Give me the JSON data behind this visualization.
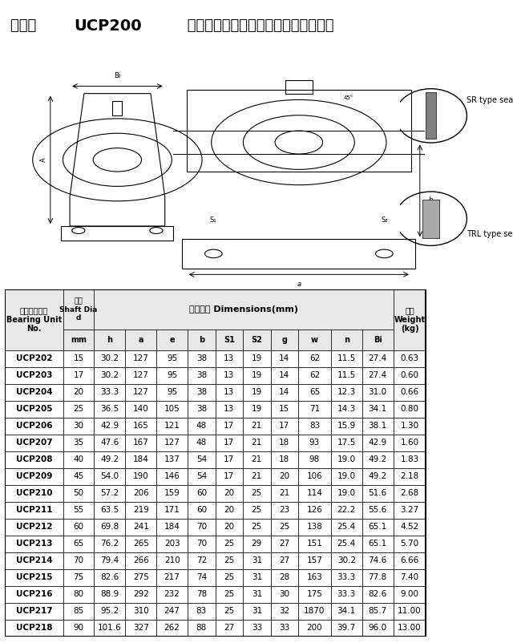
{
  "title_parts": [
    "立式座 ",
    "UCP200",
    " 系列轴承规格、性能、型号对照参数表"
  ],
  "title_bold": [
    false,
    true,
    false
  ],
  "header_row1": [
    "带座轴承型号\nBearing Unit\nNo.",
    "轴径\nShaft Dia\n\nd",
    "外型尺寸 Dimensions(mm)",
    "重量\nWeight\n(kg)"
  ],
  "header_row2": [
    "",
    "mm",
    "h",
    "a",
    "e",
    "b",
    "S1",
    "S2",
    "g",
    "w",
    "n",
    "Bi",
    ""
  ],
  "col_headers": [
    "h",
    "a",
    "e",
    "b",
    "S1",
    "S2",
    "g",
    "w",
    "n",
    "Bi"
  ],
  "rows": [
    [
      "UCP202",
      "15",
      "30.2",
      "127",
      "95",
      "38",
      "13",
      "19",
      "14",
      "62",
      "11.5",
      "27.4",
      "0.63"
    ],
    [
      "UCP203",
      "17",
      "30.2",
      "127",
      "95",
      "38",
      "13",
      "19",
      "14",
      "62",
      "11.5",
      "27.4",
      "0.60"
    ],
    [
      "UCP204",
      "20",
      "33.3",
      "127",
      "95",
      "38",
      "13",
      "19",
      "14",
      "65",
      "12.3",
      "31.0",
      "0.66"
    ],
    [
      "UCP205",
      "25",
      "36.5",
      "140",
      "105",
      "38",
      "13",
      "19",
      "15",
      "71",
      "14.3",
      "34.1",
      "0.80"
    ],
    [
      "UCP206",
      "30",
      "42.9",
      "165",
      "121",
      "48",
      "17",
      "21",
      "17",
      "83",
      "15.9",
      "38.1",
      "1.30"
    ],
    [
      "UCP207",
      "35",
      "47.6",
      "167",
      "127",
      "48",
      "17",
      "21",
      "18",
      "93",
      "17.5",
      "42.9",
      "1.60"
    ],
    [
      "UCP208",
      "40",
      "49.2",
      "184",
      "137",
      "54",
      "17",
      "21",
      "18",
      "98",
      "19.0",
      "49.2",
      "1.83"
    ],
    [
      "UCP209",
      "45",
      "54.0",
      "190",
      "146",
      "54",
      "17",
      "21",
      "20",
      "106",
      "19.0",
      "49.2",
      "2.18"
    ],
    [
      "UCP210",
      "50",
      "57.2",
      "206",
      "159",
      "60",
      "20",
      "25",
      "21",
      "114",
      "19.0",
      "51.6",
      "2.68"
    ],
    [
      "UCP211",
      "55",
      "63.5",
      "219",
      "171",
      "60",
      "20",
      "25",
      "23",
      "126",
      "22.2",
      "55.6",
      "3.27"
    ],
    [
      "UCP212",
      "60",
      "69.8",
      "241",
      "184",
      "70",
      "20",
      "25",
      "25",
      "138",
      "25.4",
      "65.1",
      "4.52"
    ],
    [
      "UCP213",
      "65",
      "76.2",
      "265",
      "203",
      "70",
      "25",
      "29",
      "27",
      "151",
      "25.4",
      "65.1",
      "5.70"
    ],
    [
      "UCP214",
      "70",
      "79.4",
      "266",
      "210",
      "72",
      "25",
      "31",
      "27",
      "157",
      "30.2",
      "74.6",
      "6.66"
    ],
    [
      "UCP215",
      "75",
      "82.6",
      "275",
      "217",
      "74",
      "25",
      "31",
      "28",
      "163",
      "33.3",
      "77.8",
      "7.40"
    ],
    [
      "UCP216",
      "80",
      "88.9",
      "292",
      "232",
      "78",
      "25",
      "31",
      "30",
      "175",
      "33.3",
      "82.6",
      "9.00"
    ],
    [
      "UCP217",
      "85",
      "95.2",
      "310",
      "247",
      "83",
      "25",
      "31",
      "32",
      "1870",
      "34.1",
      "85.7",
      "11.00"
    ],
    [
      "UCP218",
      "90",
      "101.6",
      "327",
      "262",
      "88",
      "27",
      "33",
      "33",
      "200",
      "39.7",
      "96.0",
      "13.00"
    ]
  ],
  "bg_color": "#ffffff",
  "table_border_color": "#000000",
  "header_bg": "#f0f0f0",
  "font_size_title": 13,
  "font_size_header": 8,
  "font_size_data": 8
}
